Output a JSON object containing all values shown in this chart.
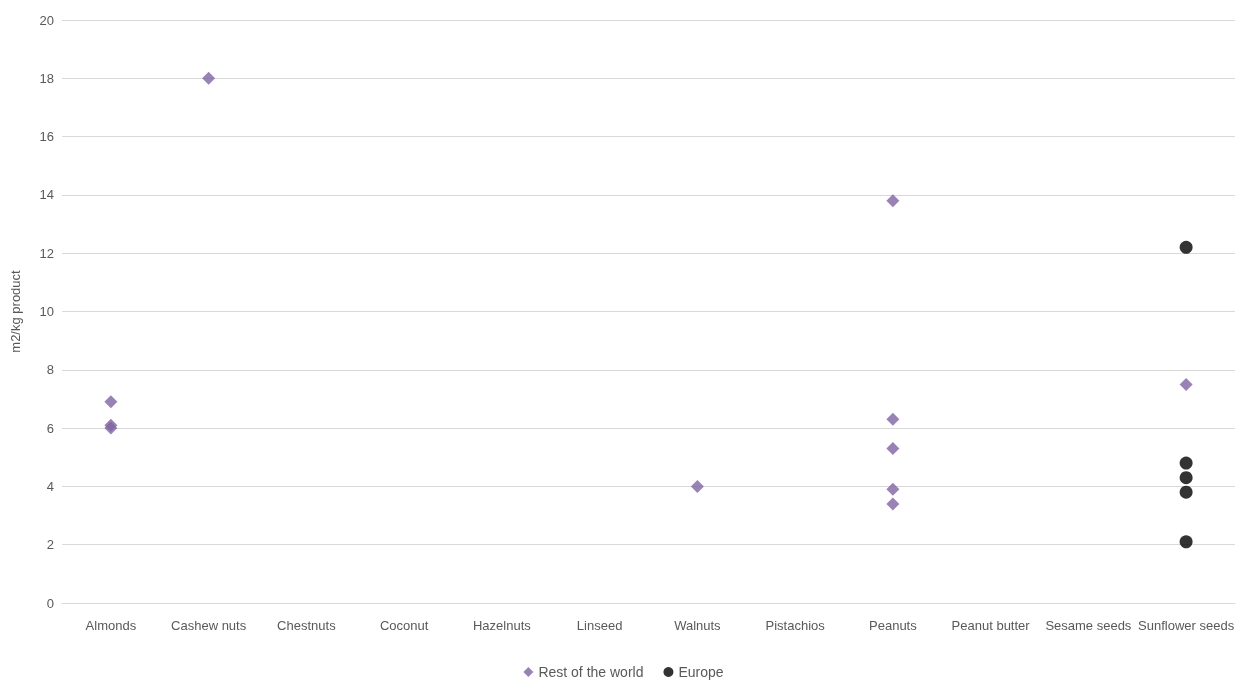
{
  "chart_data": {
    "type": "scatter",
    "ylabel": "m2/kg product",
    "categories": [
      "Almonds",
      "Cashew nuts",
      "Chestnuts",
      "Coconut",
      "Hazelnuts",
      "Linseed",
      "Walnuts",
      "Pistachios",
      "Peanuts",
      "Peanut butter",
      "Sesame seeds",
      "Sunflower seeds"
    ],
    "series": [
      {
        "name": "Rest of the world",
        "color": "#8064a2",
        "marker": "diamond",
        "x": [
          "Almonds",
          "Almonds",
          "Almonds",
          "Cashew nuts",
          "Walnuts",
          "Peanuts",
          "Peanuts",
          "Peanuts",
          "Peanuts",
          "Peanuts",
          "Sunflower seeds"
        ],
        "values": [
          6.9,
          6.1,
          6.0,
          18.0,
          4.0,
          13.8,
          6.3,
          5.3,
          3.9,
          3.4,
          7.5
        ]
      },
      {
        "name": "Europe",
        "color": "#000000",
        "marker": "circle",
        "x": [
          "Sunflower seeds",
          "Sunflower seeds",
          "Sunflower seeds",
          "Sunflower seeds",
          "Sunflower seeds"
        ],
        "values": [
          12.2,
          4.8,
          4.3,
          3.8,
          2.1
        ]
      }
    ],
    "ylim": [
      0,
      20
    ],
    "yticks": [
      0,
      2,
      4,
      6,
      8,
      10,
      12,
      14,
      16,
      18,
      20
    ],
    "grid": "y",
    "legend": "bottom"
  }
}
